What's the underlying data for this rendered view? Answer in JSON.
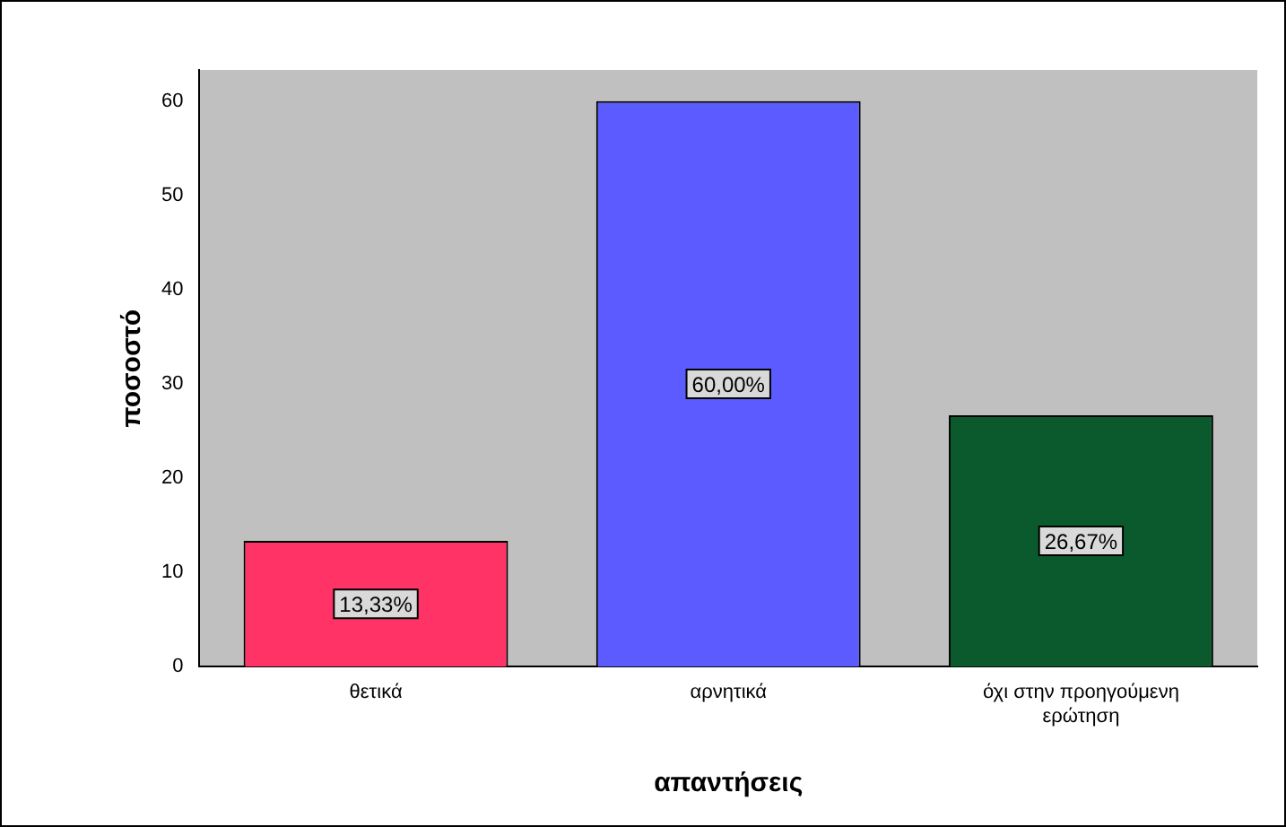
{
  "chart_data": {
    "type": "bar",
    "xlabel": "απαντήσεις",
    "ylabel": "ποσοστό",
    "categories": [
      "θετικά",
      "αρνητικά",
      "όχι στην προηγούμενη ερώτηση"
    ],
    "values": [
      13.33,
      60.0,
      26.67
    ],
    "colors": [
      "#ff3366",
      "#5b5bff",
      "#0b5a2e"
    ],
    "value_labels": [
      "13,33%",
      "60,00%",
      "26,67%"
    ],
    "ylim": [
      0,
      63.3
    ],
    "yticks": [
      0,
      10,
      20,
      30,
      40,
      50,
      60
    ],
    "grid": false,
    "legend": false
  }
}
